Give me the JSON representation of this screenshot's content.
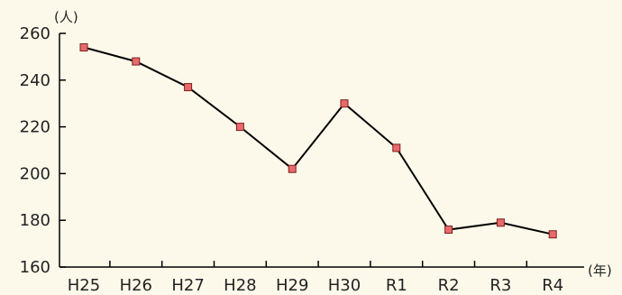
{
  "chart_data": {
    "type": "line",
    "y_unit": "(人)",
    "x_unit": "(年)",
    "categories": [
      "H25",
      "H26",
      "H27",
      "H28",
      "H29",
      "H30",
      "R1",
      "R2",
      "R3",
      "R4"
    ],
    "series": [
      {
        "values": [
          254,
          248,
          237,
          220,
          202,
          230,
          211,
          176,
          179,
          174
        ]
      }
    ],
    "ylim": [
      160,
      260
    ],
    "yticks": [
      160,
      180,
      200,
      220,
      240,
      260
    ],
    "grid": false,
    "colors": {
      "line": "#000000",
      "marker_fill": "#e86a6a",
      "marker_stroke": "#7a2020",
      "axis": "#000000",
      "background": "#fdf9ea"
    }
  }
}
